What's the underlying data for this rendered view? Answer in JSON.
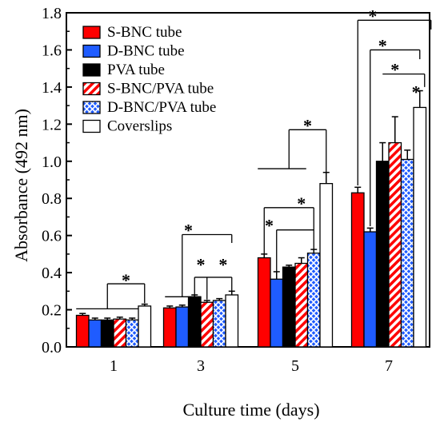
{
  "chart_data": {
    "type": "bar",
    "xlabel": "Culture time (days)",
    "ylabel": "Absorbance (492 nm)",
    "ylim": [
      0,
      1.8
    ],
    "yticks": [
      "0.0",
      "0.2",
      "0.4",
      "0.6",
      "0.8",
      "1.0",
      "1.2",
      "1.4",
      "1.6",
      "1.8"
    ],
    "categories": [
      "1",
      "3",
      "5",
      "7"
    ],
    "legend_position": "top-left",
    "significance_marker": "*",
    "series": [
      {
        "name": "S-BNC tube",
        "color": "#ff0000",
        "pattern": "solid",
        "values": [
          0.17,
          0.21,
          0.48,
          0.83
        ],
        "errors": [
          0.01,
          0.01,
          0.02,
          0.03
        ]
      },
      {
        "name": "D-BNC tube",
        "color": "#1f5cff",
        "pattern": "solid",
        "values": [
          0.145,
          0.215,
          0.365,
          0.62
        ],
        "errors": [
          0.01,
          0.01,
          0.04,
          0.02
        ]
      },
      {
        "name": "PVA tube",
        "color": "#000000",
        "pattern": "solid",
        "values": [
          0.145,
          0.27,
          0.43,
          1.0
        ],
        "errors": [
          0.01,
          0.01,
          0.01,
          0.1
        ]
      },
      {
        "name": "S-BNC/PVA tube",
        "color": "#ff0000",
        "pattern": "diagonal",
        "values": [
          0.15,
          0.24,
          0.45,
          1.1
        ],
        "errors": [
          0.01,
          0.01,
          0.03,
          0.14
        ]
      },
      {
        "name": "D-BNC/PVA tube",
        "color": "#1f5cff",
        "pattern": "crosshatch",
        "values": [
          0.145,
          0.25,
          0.505,
          1.01
        ],
        "errors": [
          0.01,
          0.01,
          0.02,
          0.05
        ]
      },
      {
        "name": "Coverslips",
        "color": "#ffffff",
        "pattern": "solid",
        "values": [
          0.22,
          0.28,
          0.88,
          1.29
        ],
        "errors": [
          0.01,
          0.02,
          0.06,
          0.09
        ]
      }
    ]
  }
}
